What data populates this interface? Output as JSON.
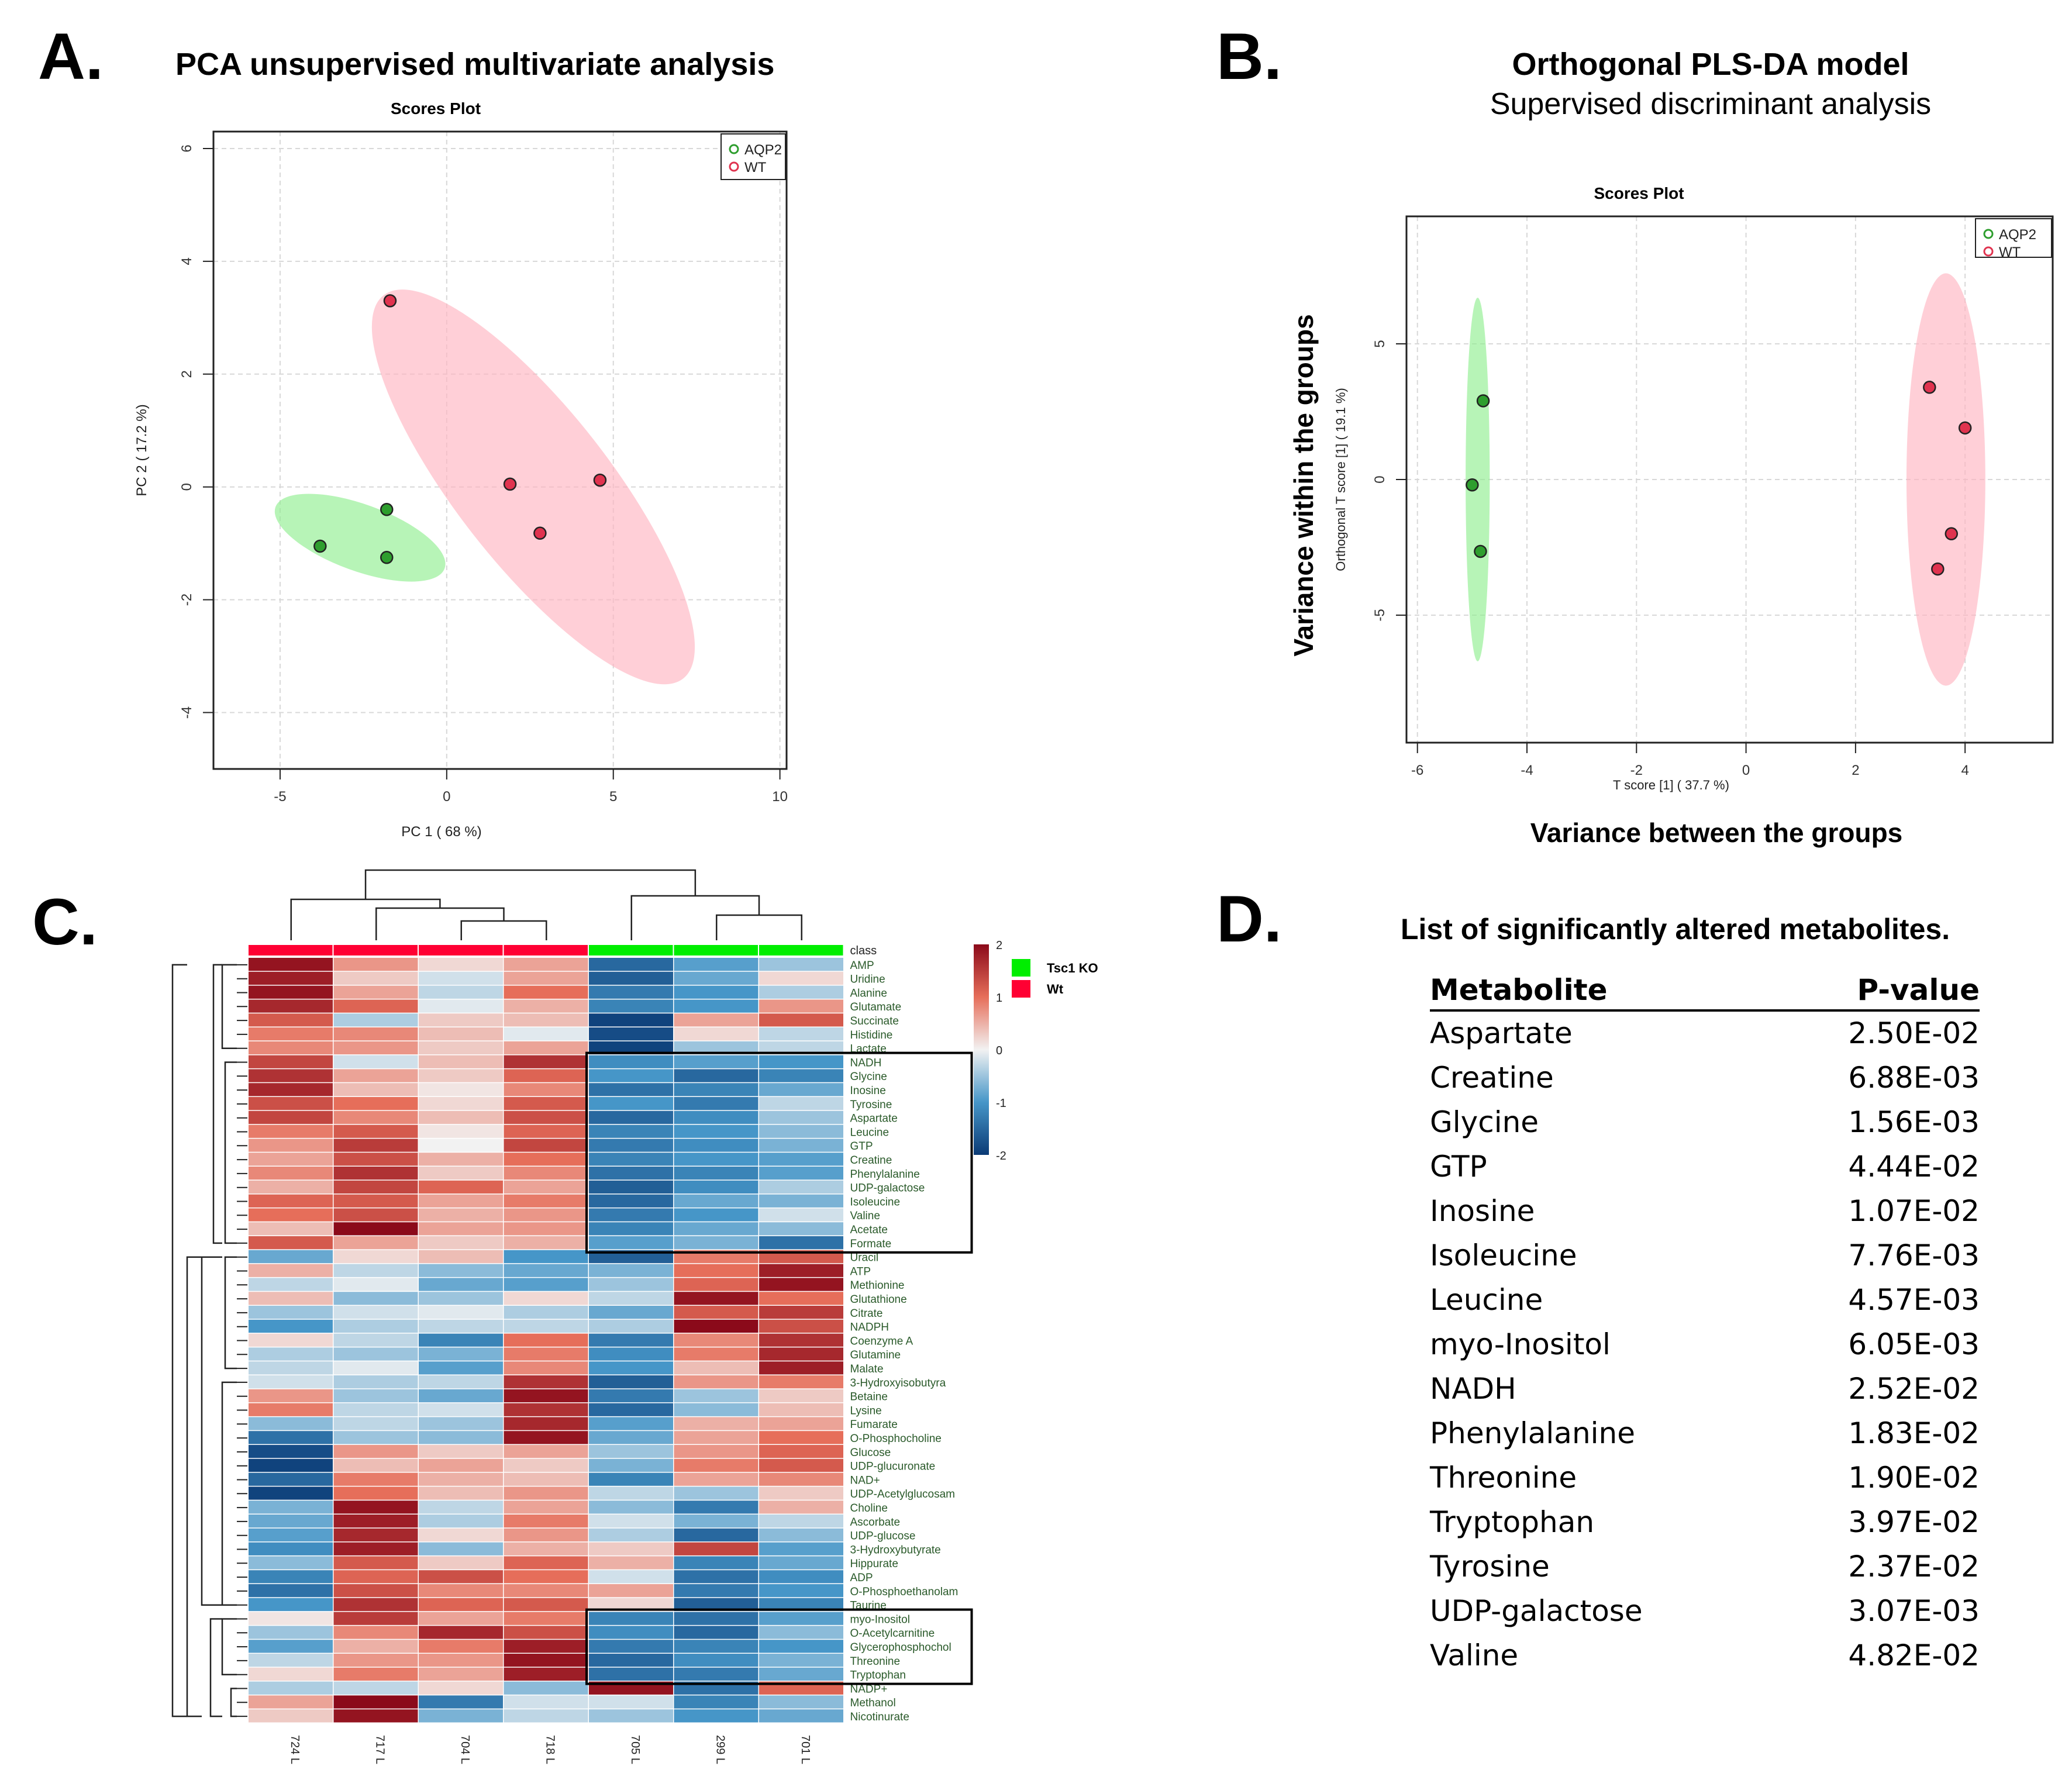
{
  "panels": {
    "A": {
      "letter": "A.",
      "title": "PCA unsupervised multivariate analysis"
    },
    "B": {
      "letter": "B.",
      "title": "Orthogonal PLS-DA model",
      "subtitle": "Supervised discriminant analysis",
      "ylabel_big": "Variance within the groups",
      "xlabel_big": "Variance between the groups"
    },
    "C": {
      "letter": "C."
    },
    "D": {
      "letter": "D.",
      "title": "List of significantly altered metabolites."
    }
  },
  "chart_data": [
    {
      "id": "pca",
      "type": "scatter",
      "title": "Scores Plot",
      "xlabel": "PC 1 ( 68 %)",
      "ylabel": "PC 2 ( 17.2 %)",
      "xlim": [
        -7,
        10.2
      ],
      "ylim": [
        -5,
        6.3
      ],
      "xticks": [
        -5,
        0,
        5,
        10
      ],
      "yticks": [
        -4,
        -2,
        0,
        2,
        4,
        6
      ],
      "legend": {
        "position": "top-right",
        "entries": [
          "AQP2",
          "WT"
        ]
      },
      "colors": {
        "AQP2": "#2e9e2e",
        "WT": "#e0334f",
        "AQP2_fill": "#90ee90",
        "WT_fill": "#ffb6c1"
      },
      "series": [
        {
          "name": "AQP2",
          "points": [
            [
              -3.8,
              -1.05
            ],
            [
              -1.8,
              -1.25
            ],
            [
              -1.8,
              -0.4
            ]
          ],
          "ellipse": {
            "center": [
              -2.6,
              -0.9
            ],
            "rx": 2.7,
            "ry": 1.0,
            "angle_deg": 20
          }
        },
        {
          "name": "WT",
          "points": [
            [
              -1.7,
              3.3
            ],
            [
              1.9,
              0.05
            ],
            [
              2.8,
              -0.82
            ],
            [
              4.6,
              0.12
            ]
          ],
          "ellipse": {
            "center": [
              2.6,
              0.0
            ],
            "rx": 7.3,
            "ry": 2.3,
            "angle_deg": 52
          }
        }
      ]
    },
    {
      "id": "oplsda",
      "type": "scatter",
      "title": "Scores Plot",
      "xlabel": "T score [1] ( 37.7 %)",
      "ylabel": "Orthogonal T score [1] ( 19.1 %)",
      "xlim": [
        -6.2,
        5.6
      ],
      "ylim": [
        -9.7,
        9.7
      ],
      "xticks": [
        -6,
        -4,
        -2,
        0,
        2,
        4
      ],
      "yticks": [
        -5,
        0,
        5
      ],
      "legend": {
        "position": "top-right",
        "entries": [
          "AQP2",
          "WT"
        ]
      },
      "colors": {
        "AQP2": "#2e9e2e",
        "WT": "#e0334f",
        "AQP2_fill": "#90ee90",
        "WT_fill": "#ffb6c1"
      },
      "series": [
        {
          "name": "AQP2",
          "points": [
            [
              -4.8,
              2.9
            ],
            [
              -5.0,
              -0.2
            ],
            [
              -4.85,
              -2.65
            ]
          ],
          "ellipse": {
            "center": [
              -4.9,
              0.0
            ],
            "rx": 0.22,
            "ry": 6.7,
            "angle_deg": 0
          }
        },
        {
          "name": "WT",
          "points": [
            [
              3.35,
              3.4
            ],
            [
              4.0,
              1.9
            ],
            [
              3.75,
              -2.0
            ],
            [
              3.5,
              -3.3
            ]
          ],
          "ellipse": {
            "center": [
              3.65,
              0.0
            ],
            "rx": 0.72,
            "ry": 7.6,
            "angle_deg": 0
          }
        }
      ]
    },
    {
      "id": "heatmap",
      "type": "heatmap",
      "class_label": "class",
      "legend": {
        "entries": [
          {
            "label": "Tsc1 KO",
            "color": "#00ee00"
          },
          {
            "label": "Wt",
            "color": "#ff0033"
          }
        ]
      },
      "colorscale": {
        "min": -2,
        "max": 2,
        "ticks": [
          2,
          1,
          0,
          -1,
          -2
        ],
        "low": "#0a3a75",
        "mid": "#f2f2f2",
        "high": "#8b0a1a"
      },
      "columns": [
        "724 L",
        "717 L",
        "704 L",
        "718 L",
        "705 L",
        "299 L",
        "701 L"
      ],
      "column_classes": [
        "Wt",
        "Wt",
        "Wt",
        "Wt",
        "Tsc1 KO",
        "Tsc1 KO",
        "Tsc1 KO"
      ],
      "rows": [
        "AMP",
        "Uridine",
        "Alanine",
        "Glutamate",
        "Succinate",
        "Histidine",
        "Lactate",
        "NADH",
        "Glycine",
        "Inosine",
        "Tyrosine",
        "Aspartate",
        "Leucine",
        "GTP",
        "Creatine",
        "Phenylalanine",
        "UDP-galactose",
        "Isoleucine",
        "Valine",
        "Acetate",
        "Formate",
        "Uracil",
        "ATP",
        "Methionine",
        "Glutathione",
        "Citrate",
        "NADPH",
        "Coenzyme A",
        "Glutamine",
        "Malate",
        "3-Hydroxyisobutyra",
        "Betaine",
        "Lysine",
        "Fumarate",
        "O-Phosphocholine",
        "Glucose",
        "UDP-glucuronate",
        "NAD+",
        "UDP-Acetylglucosam",
        "Choline",
        "Ascorbate",
        "UDP-glucose",
        "3-Hydroxybutyrate",
        "Hippurate",
        "ADP",
        "O-Phosphoethanolam",
        "Taurine",
        "myo-Inositol",
        "O-Acetylcarnitine",
        "Glycerophosphochol",
        "Threonine",
        "Tryptophan",
        "NADP+",
        "Methanol",
        "Nicotinurate"
      ],
      "values": [
        [
          1.9,
          0.7,
          0.2,
          0.6,
          -1.5,
          -0.9,
          -0.5
        ],
        [
          1.8,
          0.3,
          -0.2,
          0.6,
          -1.6,
          -0.8,
          0.2
        ],
        [
          1.9,
          0.6,
          -0.3,
          1.0,
          -1.3,
          -1.0,
          -0.4
        ],
        [
          1.7,
          1.1,
          -0.1,
          0.5,
          -1.2,
          -1.0,
          0.7
        ],
        [
          1.2,
          -0.4,
          0.3,
          0.4,
          -1.9,
          0.6,
          1.2
        ],
        [
          0.9,
          0.8,
          0.4,
          -0.1,
          -1.8,
          0.2,
          -0.3
        ],
        [
          0.8,
          0.7,
          0.3,
          0.6,
          -1.9,
          -0.5,
          -0.3
        ],
        [
          1.4,
          -0.2,
          0.4,
          1.6,
          -1.1,
          -0.9,
          -1.0
        ],
        [
          1.6,
          0.6,
          0.3,
          1.1,
          -1.0,
          -1.5,
          -1.2
        ],
        [
          1.7,
          0.4,
          0.1,
          0.8,
          -1.4,
          -1.2,
          -0.8
        ],
        [
          1.3,
          1.0,
          0.2,
          1.2,
          -1.0,
          -1.3,
          -0.3
        ],
        [
          1.4,
          0.8,
          0.4,
          1.3,
          -1.5,
          -1.1,
          -0.5
        ],
        [
          0.9,
          1.2,
          0.1,
          1.1,
          -1.2,
          -1.0,
          -0.6
        ],
        [
          0.7,
          1.5,
          0.0,
          1.4,
          -1.3,
          -1.1,
          -0.7
        ],
        [
          0.6,
          1.3,
          0.5,
          1.0,
          -1.2,
          -1.0,
          -0.9
        ],
        [
          0.8,
          1.6,
          0.3,
          0.8,
          -1.4,
          -1.2,
          -0.9
        ],
        [
          0.5,
          1.4,
          1.1,
          0.6,
          -1.6,
          -1.1,
          -0.4
        ],
        [
          1.1,
          1.2,
          0.6,
          0.9,
          -1.5,
          -0.8,
          -0.7
        ],
        [
          1.0,
          1.3,
          0.5,
          0.7,
          -1.3,
          -1.0,
          -0.2
        ],
        [
          0.4,
          2.0,
          0.6,
          0.7,
          -1.2,
          -0.8,
          -0.6
        ],
        [
          1.2,
          0.6,
          0.3,
          0.5,
          -0.9,
          -0.7,
          -1.4
        ],
        [
          -0.8,
          0.2,
          0.4,
          -1.0,
          -1.6,
          0.9,
          1.2
        ],
        [
          0.5,
          -0.3,
          -0.6,
          -0.8,
          -0.7,
          1.0,
          1.8
        ],
        [
          -0.3,
          -0.1,
          -0.8,
          -0.9,
          -0.5,
          1.1,
          1.9
        ],
        [
          0.4,
          -0.6,
          -0.5,
          0.2,
          -0.3,
          1.9,
          1.0
        ],
        [
          -0.5,
          -0.2,
          -0.1,
          -0.4,
          -0.8,
          1.2,
          1.5
        ],
        [
          -1.0,
          -0.4,
          -0.3,
          -0.3,
          -0.4,
          2.0,
          1.3
        ],
        [
          0.2,
          -0.3,
          -1.2,
          1.0,
          -1.3,
          0.8,
          1.6
        ],
        [
          -0.4,
          -0.5,
          -0.7,
          0.9,
          -1.1,
          0.9,
          1.7
        ],
        [
          -0.3,
          -0.1,
          -0.9,
          0.8,
          -1.0,
          0.4,
          1.8
        ],
        [
          -0.2,
          -0.4,
          -0.3,
          1.6,
          -1.6,
          0.7,
          0.9
        ],
        [
          0.7,
          -0.5,
          -0.8,
          1.9,
          -1.3,
          -0.5,
          0.3
        ],
        [
          0.9,
          -0.3,
          -0.2,
          1.6,
          -1.5,
          -0.6,
          0.4
        ],
        [
          -0.6,
          -0.3,
          -0.5,
          1.7,
          -0.9,
          0.5,
          0.6
        ],
        [
          -1.4,
          -0.5,
          -0.6,
          1.9,
          -0.8,
          0.6,
          1.0
        ],
        [
          -1.8,
          0.7,
          0.3,
          0.6,
          -0.5,
          0.7,
          1.1
        ],
        [
          -1.9,
          0.4,
          0.6,
          0.3,
          -0.7,
          0.9,
          1.2
        ],
        [
          -1.5,
          0.9,
          0.5,
          0.4,
          -1.2,
          0.6,
          0.8
        ],
        [
          -1.9,
          1.0,
          0.4,
          0.7,
          -0.3,
          -0.5,
          0.3
        ],
        [
          -0.7,
          1.9,
          -0.3,
          0.6,
          -0.6,
          -1.3,
          0.5
        ],
        [
          -0.8,
          1.8,
          -0.4,
          0.9,
          -0.2,
          -0.7,
          -0.3
        ],
        [
          -0.9,
          1.7,
          0.2,
          0.7,
          -0.4,
          -1.5,
          -0.6
        ],
        [
          -1.1,
          1.8,
          -0.6,
          0.5,
          0.3,
          1.4,
          -0.9
        ],
        [
          -0.6,
          1.2,
          0.3,
          1.1,
          0.5,
          -1.2,
          -0.8
        ],
        [
          -1.2,
          1.1,
          1.3,
          1.0,
          -0.2,
          -1.4,
          -1.1
        ],
        [
          -1.4,
          1.3,
          0.8,
          0.8,
          0.6,
          -1.3,
          -1.0
        ],
        [
          -1.0,
          1.6,
          1.1,
          1.2,
          0.2,
          -1.6,
          -1.2
        ],
        [
          0.1,
          1.5,
          0.6,
          0.9,
          -1.2,
          -1.4,
          -0.9
        ],
        [
          -0.5,
          0.8,
          1.7,
          1.3,
          -1.1,
          -1.5,
          -0.6
        ],
        [
          -0.9,
          0.5,
          0.9,
          1.8,
          -1.3,
          -1.2,
          -1.0
        ],
        [
          -0.3,
          0.7,
          0.7,
          1.9,
          -1.5,
          -1.1,
          -0.7
        ],
        [
          0.2,
          0.9,
          0.6,
          1.8,
          -1.4,
          -1.3,
          -0.8
        ],
        [
          -0.4,
          -0.3,
          0.2,
          -0.6,
          1.9,
          -1.4,
          1.1
        ],
        [
          0.6,
          2.0,
          -1.3,
          -0.2,
          -0.2,
          -1.2,
          -0.6
        ],
        [
          0.3,
          1.9,
          -0.7,
          -0.3,
          -0.5,
          -1.0,
          -0.8
        ]
      ],
      "highlight_boxes": [
        {
          "from": "NADH",
          "to": "Formate",
          "columns": "Tsc1 KO"
        },
        {
          "from": "myo-Inositol",
          "to": "Tryptophan",
          "columns": "Tsc1 KO"
        }
      ]
    }
  ],
  "table": {
    "headers": {
      "metabolite": "Metabolite",
      "pvalue": "P-value"
    },
    "rows": [
      {
        "metabolite": "Aspartate",
        "pvalue": "2.50E-02"
      },
      {
        "metabolite": "Creatine",
        "pvalue": "6.88E-03"
      },
      {
        "metabolite": "Glycine",
        "pvalue": "1.56E-03"
      },
      {
        "metabolite": "GTP",
        "pvalue": "4.44E-02"
      },
      {
        "metabolite": "Inosine",
        "pvalue": "1.07E-02"
      },
      {
        "metabolite": "Isoleucine",
        "pvalue": "7.76E-03"
      },
      {
        "metabolite": "Leucine",
        "pvalue": "4.57E-03"
      },
      {
        "metabolite": "myo-Inositol",
        "pvalue": "6.05E-03"
      },
      {
        "metabolite": "NADH",
        "pvalue": "2.52E-02"
      },
      {
        "metabolite": "Phenylalanine",
        "pvalue": "1.83E-02"
      },
      {
        "metabolite": "Threonine",
        "pvalue": "1.90E-02"
      },
      {
        "metabolite": "Tryptophan",
        "pvalue": "3.97E-02"
      },
      {
        "metabolite": "Tyrosine",
        "pvalue": "2.37E-02"
      },
      {
        "metabolite": "UDP-galactose",
        "pvalue": "3.07E-03"
      },
      {
        "metabolite": "Valine",
        "pvalue": "4.82E-02"
      }
    ]
  }
}
